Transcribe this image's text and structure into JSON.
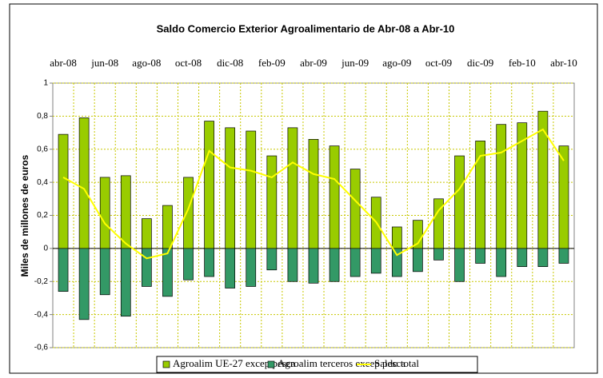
{
  "chart_data": {
    "type": "bar-line",
    "title": "Saldo Comercio Exterior Agroalimentario de Abr-08 a Abr-10",
    "y_label": "Miles de millones de euros",
    "categories": [
      "abr-08",
      null,
      "jun-08",
      null,
      "ago-08",
      null,
      "oct-08",
      null,
      "dic-08",
      null,
      "feb-09",
      null,
      "abr-09",
      null,
      "jun-09",
      null,
      "ago-09",
      null,
      "oct-09",
      null,
      "dic-09",
      null,
      "feb-10",
      null,
      "abr-10"
    ],
    "series": [
      {
        "name": "Agroalim UE-27 excep pesca",
        "type": "bar",
        "color": "#99cc00",
        "values": [
          0.69,
          0.79,
          0.43,
          0.44,
          0.18,
          0.26,
          0.43,
          0.77,
          0.73,
          0.71,
          0.56,
          0.73,
          0.66,
          0.62,
          0.48,
          0.31,
          0.13,
          0.17,
          0.3,
          0.56,
          0.65,
          0.75,
          0.76,
          0.83,
          0.62
        ]
      },
      {
        "name": "Agroalim terceros excep pesca",
        "type": "bar",
        "color": "#339966",
        "values": [
          -0.26,
          -0.43,
          -0.28,
          -0.41,
          -0.23,
          -0.29,
          -0.19,
          -0.17,
          -0.24,
          -0.23,
          -0.13,
          -0.2,
          -0.21,
          -0.2,
          -0.17,
          -0.15,
          -0.17,
          -0.14,
          -0.07,
          -0.2,
          -0.09,
          -0.17,
          -0.11,
          -0.11,
          -0.09
        ]
      },
      {
        "name": "Saldo total",
        "type": "line",
        "color": "#ffff00",
        "values": [
          0.43,
          0.36,
          0.15,
          0.03,
          -0.06,
          -0.03,
          0.24,
          0.59,
          0.49,
          0.47,
          0.43,
          0.52,
          0.45,
          0.42,
          0.29,
          0.16,
          -0.04,
          0.03,
          0.23,
          0.36,
          0.56,
          0.58,
          0.65,
          0.72,
          0.53
        ]
      }
    ],
    "ylim": [
      -0.6,
      1
    ],
    "yticks": [
      {
        "value": -0.6,
        "label": "-0,6"
      },
      {
        "value": -0.4,
        "label": "-0,4"
      },
      {
        "value": -0.2,
        "label": "-0,2"
      },
      0,
      {
        "value": 0.2,
        "label": "0,2"
      },
      {
        "value": 0.4,
        "label": "0,4"
      },
      {
        "value": 0.6,
        "label": "0,6"
      },
      {
        "value": 0.8,
        "label": "0,8"
      },
      1
    ],
    "grid": true,
    "grid_color": "#c8c800",
    "legend": "bottom"
  }
}
